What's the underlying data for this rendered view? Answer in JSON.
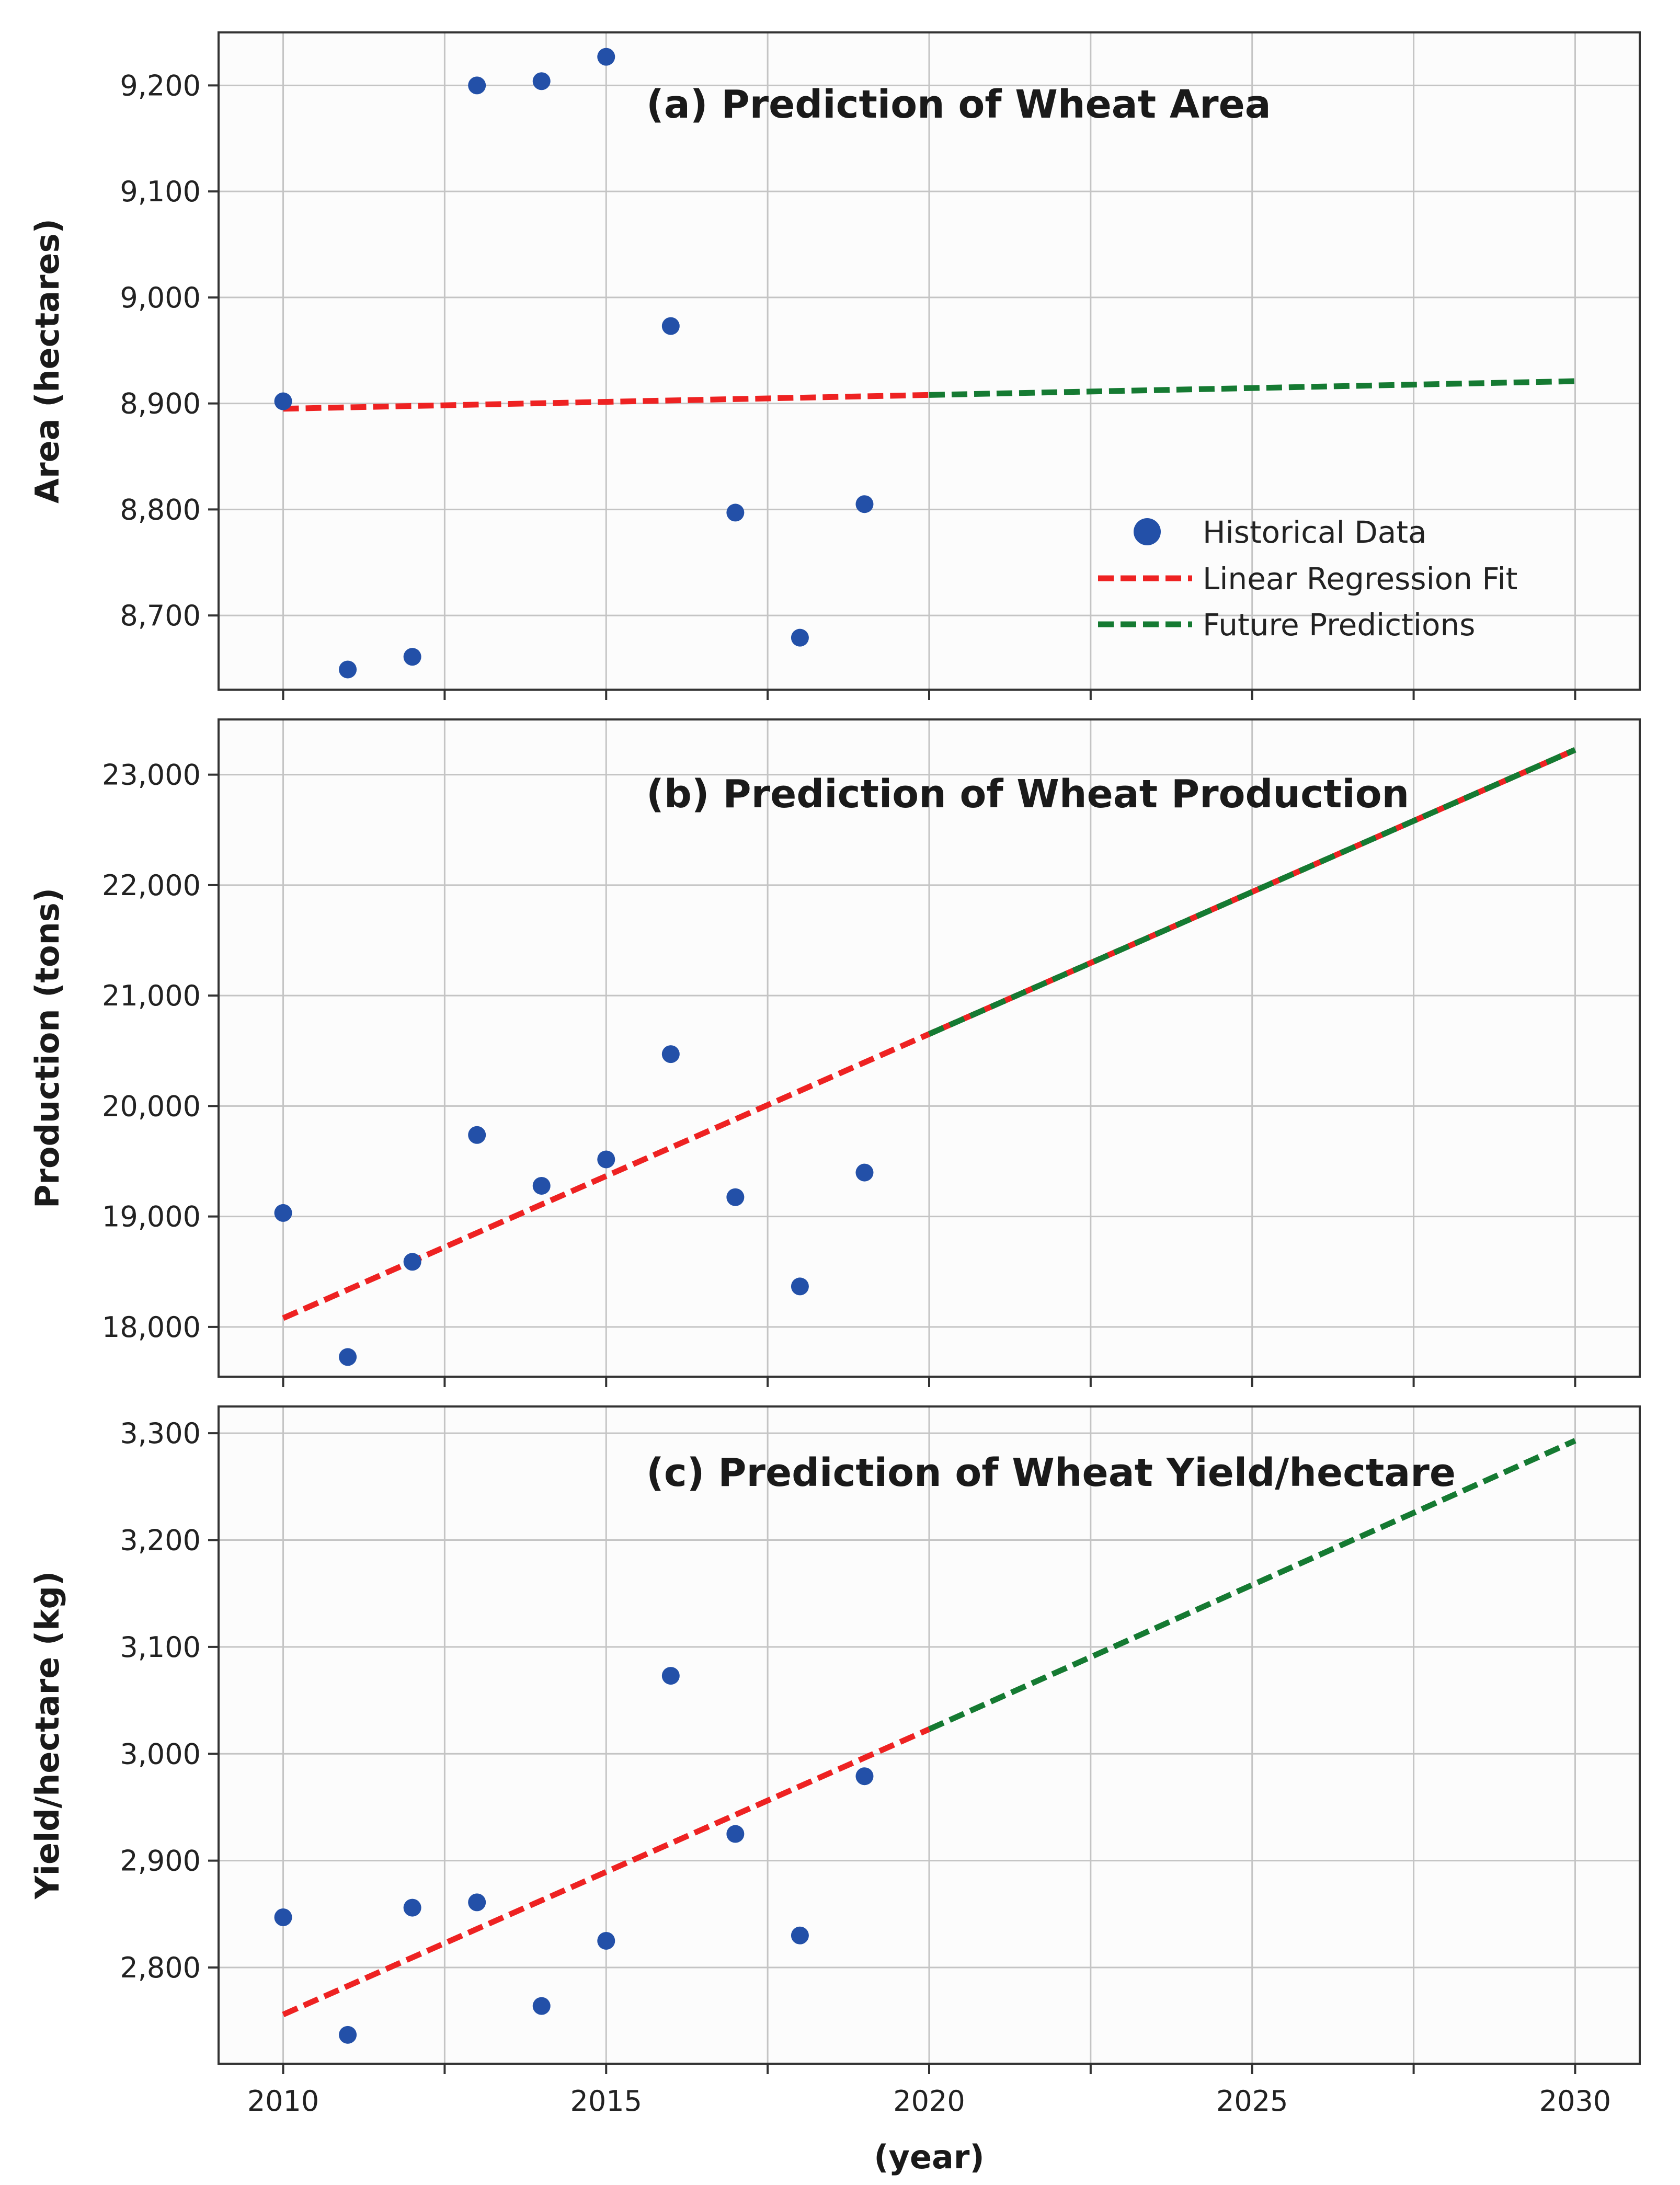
{
  "colors": {
    "historical": "#2350a8",
    "regression": "#ee2222",
    "future": "#157a32",
    "grid": "#c4c4c4",
    "frame": "#333333",
    "panel_bg": "#fcfcfc"
  },
  "chart_data": [
    {
      "type": "line",
      "panel": "a",
      "title": "(a) Prediction of Wheat Area",
      "xlabel": "",
      "ylabel": "Area (hectares)",
      "xlim": [
        2009,
        2031
      ],
      "ylim": [
        8630,
        9250
      ],
      "xticks": [
        2010,
        2015,
        2020,
        2025,
        2030
      ],
      "yticks": [
        8700,
        8800,
        8900,
        9000,
        9100,
        9200
      ],
      "ytick_labels": [
        "8,700",
        "8,800",
        "8,900",
        "9,000",
        "9,100",
        "9,200"
      ],
      "grid": true,
      "legend_position": "lower-right",
      "legend": [
        "Historical Data",
        "Linear Regression Fit",
        "Future Predictions"
      ],
      "series": [
        {
          "name": "Historical Data",
          "kind": "scatter",
          "x": [
            2010,
            2011,
            2012,
            2013,
            2014,
            2015,
            2016,
            2017,
            2018,
            2019
          ],
          "y": [
            8902,
            8649,
            8661,
            9200,
            9204,
            9227,
            8973,
            8797,
            8679,
            8805
          ]
        },
        {
          "name": "Linear Regression Fit",
          "kind": "line",
          "x": [
            2010,
            2020
          ],
          "y": [
            8895,
            8908
          ]
        },
        {
          "name": "Future Predictions",
          "kind": "line",
          "x": [
            2020,
            2030
          ],
          "y": [
            8908,
            8921
          ]
        }
      ]
    },
    {
      "type": "line",
      "panel": "b",
      "title": "(b) Prediction of Wheat Production",
      "xlabel": "",
      "ylabel": "Production (tons)",
      "xlim": [
        2009,
        2031
      ],
      "ylim": [
        17550,
        23500
      ],
      "xticks": [
        2010,
        2015,
        2020,
        2025,
        2030
      ],
      "yticks": [
        18000,
        19000,
        20000,
        21000,
        22000,
        23000
      ],
      "ytick_labels": [
        "18,000",
        "19,000",
        "20,000",
        "21,000",
        "22,000",
        "23,000"
      ],
      "grid": true,
      "series": [
        {
          "name": "Historical Data",
          "kind": "scatter",
          "x": [
            2010,
            2011,
            2012,
            2013,
            2014,
            2015,
            2016,
            2017,
            2018,
            2019
          ],
          "y": [
            19032,
            17728,
            18590,
            19738,
            19278,
            19517,
            20470,
            19175,
            18367,
            19398
          ]
        },
        {
          "name": "Linear Regression Fit",
          "kind": "line",
          "x": [
            2010,
            2030
          ],
          "y": [
            18080,
            23225
          ]
        },
        {
          "name": "Future Predictions",
          "kind": "line",
          "x": [
            2020,
            2030
          ],
          "y": [
            20652,
            23225
          ]
        }
      ]
    },
    {
      "type": "line",
      "panel": "c",
      "title": "(c) Prediction of Wheat Yield/hectare",
      "xlabel": "(year)",
      "ylabel": "Yield/hectare (kg)",
      "xlim": [
        2009,
        2031
      ],
      "ylim": [
        2710,
        3325
      ],
      "xticks": [
        2010,
        2015,
        2020,
        2025,
        2030
      ],
      "xtick_labels": [
        "2010",
        "2015",
        "2020",
        "2025",
        "2030"
      ],
      "yticks": [
        2800,
        2900,
        3000,
        3100,
        3200,
        3300
      ],
      "ytick_labels": [
        "2,800",
        "2,900",
        "3,000",
        "3,100",
        "3,200",
        "3,300"
      ],
      "grid": true,
      "series": [
        {
          "name": "Historical Data",
          "kind": "scatter",
          "x": [
            2010,
            2011,
            2012,
            2013,
            2014,
            2015,
            2016,
            2017,
            2018,
            2019
          ],
          "y": [
            2847,
            2737,
            2856,
            2861,
            2764,
            2825,
            3073,
            2925,
            2830,
            2979
          ]
        },
        {
          "name": "Linear Regression Fit",
          "kind": "line",
          "x": [
            2010,
            2020
          ],
          "y": [
            2756,
            3023
          ]
        },
        {
          "name": "Future Predictions",
          "kind": "line",
          "x": [
            2020,
            2030
          ],
          "y": [
            3023,
            3293
          ]
        }
      ]
    }
  ]
}
